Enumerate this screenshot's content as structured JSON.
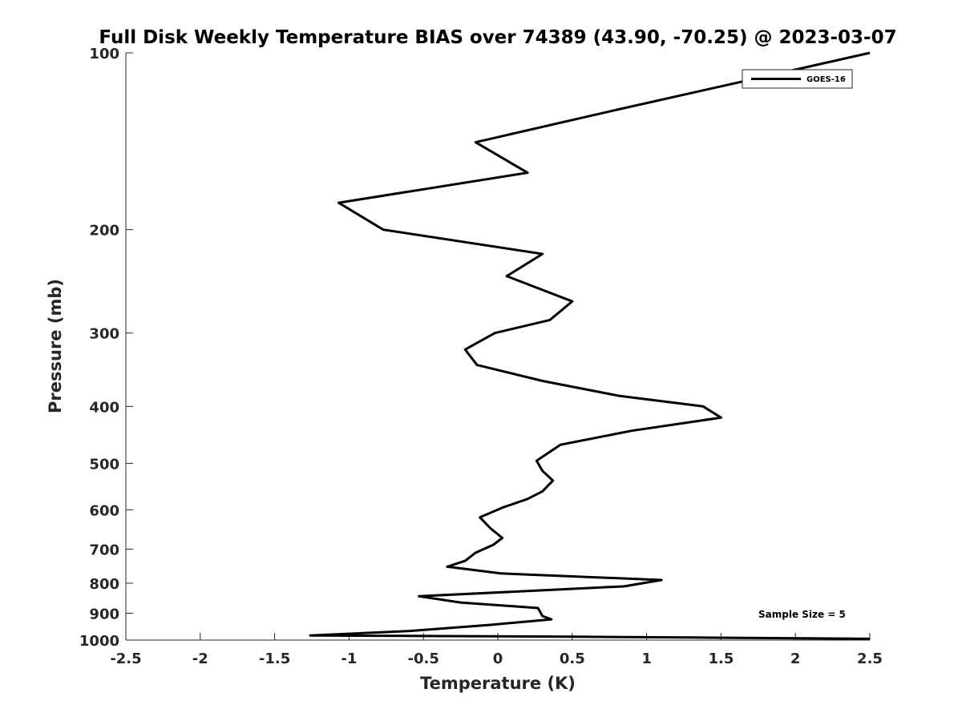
{
  "chart_data": {
    "type": "line",
    "title": "Full Disk Weekly Temperature BIAS over 74389 (43.90, -70.25) @ 2023-03-07",
    "xlabel": "Temperature (K)",
    "ylabel": "Pressure (mb)",
    "xlim": [
      -2.5,
      2.5
    ],
    "ylim": [
      100,
      1000
    ],
    "yscale": "log",
    "yreversed": true,
    "x_ticks": [
      -2.5,
      -2,
      -1.5,
      -1,
      -0.5,
      0,
      0.5,
      1,
      1.5,
      2,
      2.5
    ],
    "x_tick_labels": [
      "-2.5",
      "-2",
      "-1.5",
      "-1",
      "-0.5",
      "0",
      "0.5",
      "1",
      "1.5",
      "2",
      "2.5"
    ],
    "y_ticks": [
      100,
      200,
      300,
      400,
      500,
      600,
      700,
      800,
      900,
      1000
    ],
    "y_tick_labels": [
      "100",
      "200",
      "300",
      "400",
      "500",
      "600",
      "700",
      "800",
      "900",
      "1000"
    ],
    "grid": false,
    "legend_position": "top-right",
    "series": [
      {
        "name": "GOES-16",
        "color": "#000000",
        "points": [
          [
            2.5,
            100
          ],
          [
            0.8,
            125
          ],
          [
            -0.15,
            142
          ],
          [
            0.2,
            160
          ],
          [
            -1.07,
            180
          ],
          [
            -0.77,
            200
          ],
          [
            0.3,
            220
          ],
          [
            0.06,
            240
          ],
          [
            0.5,
            265
          ],
          [
            0.35,
            285
          ],
          [
            -0.02,
            300
          ],
          [
            -0.22,
            320
          ],
          [
            -0.14,
            340
          ],
          [
            0.3,
            362
          ],
          [
            0.82,
            384
          ],
          [
            1.38,
            400
          ],
          [
            1.5,
            418
          ],
          [
            0.9,
            440
          ],
          [
            0.42,
            465
          ],
          [
            0.26,
            495
          ],
          [
            0.3,
            515
          ],
          [
            0.37,
            535
          ],
          [
            0.3,
            558
          ],
          [
            0.2,
            575
          ],
          [
            0.03,
            595
          ],
          [
            -0.12,
            618
          ],
          [
            -0.05,
            645
          ],
          [
            0.03,
            670
          ],
          [
            -0.03,
            688
          ],
          [
            -0.15,
            710
          ],
          [
            -0.22,
            733
          ],
          [
            -0.34,
            750
          ],
          [
            0.02,
            770
          ],
          [
            1.1,
            790
          ],
          [
            0.85,
            810
          ],
          [
            -0.53,
            842
          ],
          [
            -0.25,
            863
          ],
          [
            0.27,
            882
          ],
          [
            0.3,
            910
          ],
          [
            0.36,
            922
          ],
          [
            -0.05,
            942
          ],
          [
            -0.6,
            965
          ],
          [
            -1.26,
            982
          ],
          [
            -0.5,
            984
          ],
          [
            0.5,
            987
          ],
          [
            1.3,
            990
          ],
          [
            2.5,
            995
          ]
        ]
      }
    ],
    "annotations": [
      "Sample Size = 5"
    ]
  }
}
